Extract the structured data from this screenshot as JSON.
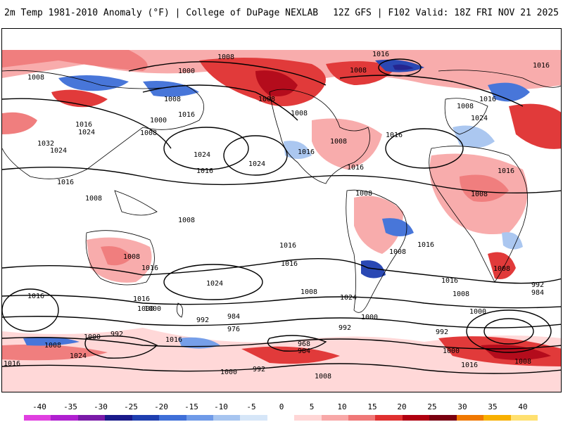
{
  "header": {
    "title_left": "2m Temp 1981-2010 Anomaly (°F) | College of DuPage NEXLAB",
    "title_right": "12Z GFS | F102 Valid: 18Z FRI NOV 21 2025"
  },
  "colorbar": {
    "tick_labels": [
      "-40",
      "-35",
      "-30",
      "-25",
      "-20",
      "-15",
      "-10",
      "-5",
      "0",
      "5",
      "10",
      "15",
      "20",
      "25",
      "30",
      "35",
      "40"
    ],
    "colors": [
      "#e040e0",
      "#b020d0",
      "#7a1aa8",
      "#1a1a8a",
      "#1f3fb0",
      "#3f6fd8",
      "#6f9ae8",
      "#a7c5f0",
      "#d6e6f8",
      "#ffffff",
      "#ffd6d6",
      "#f8a8a8",
      "#f07878",
      "#e03030",
      "#b00010",
      "#7a0010",
      "#f07800",
      "#f8b000",
      "#ffe070"
    ]
  },
  "map": {
    "isobar_labels": [
      "1008",
      "1016",
      "1008",
      "1000",
      "1016",
      "1008",
      "1016",
      "1024",
      "1032",
      "1024",
      "1016",
      "1008",
      "1016",
      "1000",
      "1008",
      "1008",
      "1024",
      "1016",
      "1016",
      "1024",
      "1008",
      "1016",
      "1008",
      "1016",
      "1008",
      "1024",
      "1016",
      "1016",
      "1008",
      "1016",
      "1008",
      "1008",
      "1008",
      "1016",
      "1016",
      "1008",
      "1016",
      "1024",
      "1008",
      "1008",
      "1016",
      "1000",
      "992",
      "984",
      "976",
      "968",
      "984",
      "992",
      "1000",
      "1008",
      "1024",
      "1016",
      "1008",
      "1000",
      "992",
      "984",
      "992",
      "1000",
      "1008",
      "1016",
      "1016",
      "1000",
      "992",
      "1008",
      "1016",
      "1024",
      "1000",
      "1000",
      "992",
      "1008",
      "1016"
    ]
  }
}
